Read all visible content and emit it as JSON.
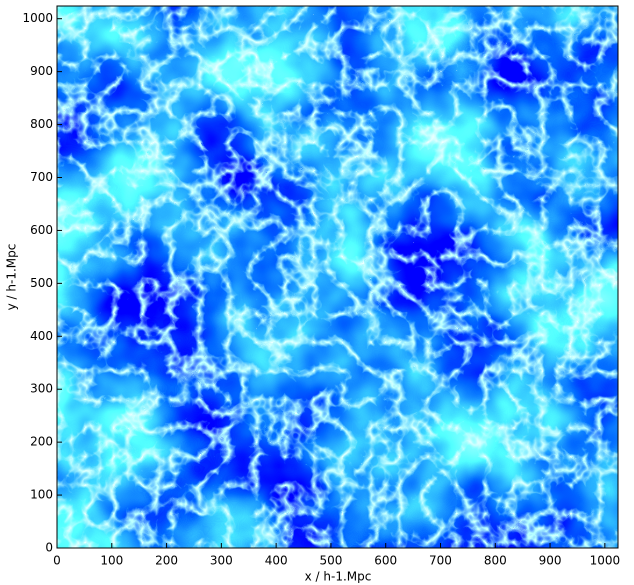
{
  "chart_data": {
    "type": "heatmap",
    "xlabel": "x / h-1.Mpc",
    "ylabel": "y / h-1.Mpc",
    "xlim": [
      0,
      1024
    ],
    "ylim": [
      0,
      1024
    ],
    "xticks": [
      0,
      100,
      200,
      300,
      400,
      500,
      600,
      700,
      800,
      900,
      1000
    ],
    "yticks": [
      0,
      100,
      200,
      300,
      400,
      500,
      600,
      700,
      800,
      900,
      1000
    ]
  }
}
